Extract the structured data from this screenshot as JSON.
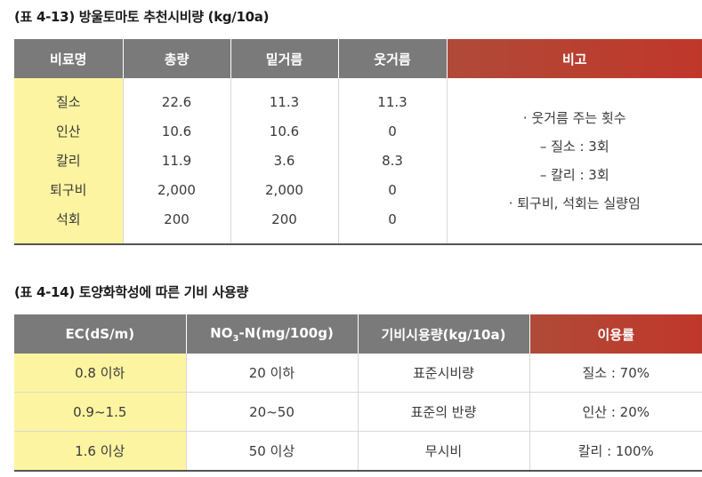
{
  "table1": {
    "caption": "(표 4-13) 방울토마토 추천시비량 (kg/10a)",
    "headers": [
      "비료명",
      "총량",
      "밑거름",
      "웃거름",
      "비고"
    ],
    "rows": [
      {
        "name": "질소",
        "total": "22.6",
        "base": "11.3",
        "top": "11.3"
      },
      {
        "name": "인산",
        "total": "10.6",
        "base": "10.6",
        "top": "0"
      },
      {
        "name": "칼리",
        "total": "11.9",
        "base": "3.6",
        "top": "8.3"
      },
      {
        "name": "퇴구비",
        "total": "2,000",
        "base": "2,000",
        "top": "0"
      },
      {
        "name": "석회",
        "total": "200",
        "base": "200",
        "top": "0"
      }
    ],
    "notes": [
      "· 웃거름 주는 횟수",
      "– 질소 : 3회",
      "– 칼리 : 3회",
      "· 퇴구비, 석회는 실량임"
    ]
  },
  "table2": {
    "caption": "(표 4-14) 토양화학성에 따른 기비 사용량",
    "headers": {
      "ec": "EC(dS/m)",
      "no3_prefix": "NO",
      "no3_sub": "3",
      "no3_suffix": "-N(mg/100g)",
      "amount": "기비시용량(kg/10a)",
      "rate": "이용률"
    },
    "rows": [
      {
        "ec": "0.8 이하",
        "no3": "20 이하",
        "amount": "표준시비량",
        "rate": "질소 : 70%"
      },
      {
        "ec": "0.9~1.5",
        "no3": "20~50",
        "amount": "표준의 반량",
        "rate": "인산 : 20%"
      },
      {
        "ec": "1.6 이상",
        "no3": "50 이상",
        "amount": "무시비",
        "rate": "칼리 : 100%"
      }
    ]
  }
}
